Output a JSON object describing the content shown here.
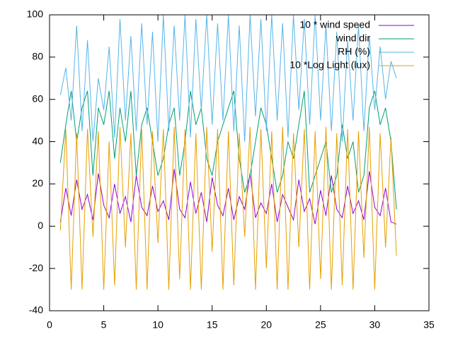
{
  "chart_data": {
    "type": "line",
    "x": [
      1,
      1.5,
      2,
      2.5,
      3,
      3.5,
      4,
      4.5,
      5,
      5.5,
      6,
      6.5,
      7,
      7.5,
      8,
      8.5,
      9,
      9.5,
      10,
      10.5,
      11,
      11.5,
      12,
      12.5,
      13,
      13.5,
      14,
      14.5,
      15,
      15.5,
      16,
      16.5,
      17,
      17.5,
      18,
      18.5,
      19,
      19.5,
      20,
      20.5,
      21,
      21.5,
      22,
      22.5,
      23,
      23.5,
      24,
      24.5,
      25,
      25.5,
      26,
      26.5,
      27,
      27.5,
      28,
      28.5,
      29,
      29.5,
      30,
      30.5,
      31,
      31.5,
      32
    ],
    "series": [
      {
        "name": "10 * wind speed",
        "color": "#9400d3",
        "values": [
          2,
          18,
          5,
          22,
          8,
          15,
          3,
          25,
          10,
          4,
          20,
          6,
          14,
          2,
          24,
          9,
          5,
          19,
          7,
          12,
          3,
          27,
          8,
          4,
          21,
          6,
          16,
          2,
          23,
          10,
          5,
          18,
          3,
          14,
          8,
          25,
          4,
          11,
          6,
          20,
          2,
          15,
          9,
          3,
          22,
          7,
          13,
          1,
          17,
          5,
          24,
          8,
          4,
          19,
          6,
          12,
          3,
          26,
          9,
          5,
          18,
          2,
          1
        ]
      },
      {
        "name": "wind dir",
        "color": "#009e73",
        "values": [
          30,
          48,
          64,
          40,
          56,
          64,
          24,
          56,
          48,
          64,
          32,
          56,
          40,
          64,
          24,
          48,
          56,
          40,
          24,
          32,
          48,
          56,
          24,
          40,
          64,
          48,
          56,
          32,
          24,
          40,
          48,
          56,
          64,
          32,
          16,
          24,
          40,
          56,
          48,
          32,
          16,
          24,
          40,
          32,
          48,
          64,
          16,
          24,
          32,
          40,
          16,
          24,
          48,
          32,
          40,
          16,
          24,
          56,
          64,
          48,
          56,
          40,
          8
        ]
      },
      {
        "name": "RH (%)",
        "color": "#56b4e9",
        "values": [
          62,
          75,
          50,
          95,
          45,
          88,
          40,
          70,
          55,
          85,
          42,
          98,
          50,
          90,
          45,
          96,
          48,
          92,
          40,
          100,
          45,
          95,
          50,
          100,
          42,
          98,
          55,
          100,
          48,
          96,
          50,
          100,
          45,
          95,
          40,
          100,
          52,
          98,
          45,
          100,
          50,
          96,
          42,
          100,
          55,
          98,
          48,
          100,
          50,
          95,
          45,
          92,
          40,
          88,
          50,
          95,
          45,
          90,
          55,
          85,
          60,
          78,
          70
        ]
      },
      {
        "name": "10 *Log Light (lux)",
        "color": "#e69f00",
        "values": [
          -2,
          46,
          -30,
          44,
          -30,
          46,
          -5,
          45,
          -30,
          40,
          -28,
          47,
          -10,
          44,
          -30,
          46,
          -30,
          45,
          -8,
          46,
          -30,
          47,
          -25,
          46,
          -30,
          44,
          -30,
          47,
          -12,
          46,
          -30,
          45,
          -28,
          44,
          -5,
          47,
          -30,
          46,
          -20,
          45,
          -30,
          47,
          -30,
          44,
          -10,
          46,
          -30,
          45,
          -25,
          47,
          -30,
          44,
          -28,
          46,
          -30,
          45,
          -15,
          47,
          -30,
          44,
          -10,
          42,
          -14
        ]
      }
    ],
    "xlim": [
      0,
      35
    ],
    "xticks": [
      0,
      5,
      10,
      15,
      20,
      25,
      30,
      35
    ],
    "ylim": [
      -40,
      100
    ],
    "yticks": [
      -40,
      -20,
      0,
      20,
      40,
      60,
      80,
      100
    ],
    "legend": "top-right"
  }
}
